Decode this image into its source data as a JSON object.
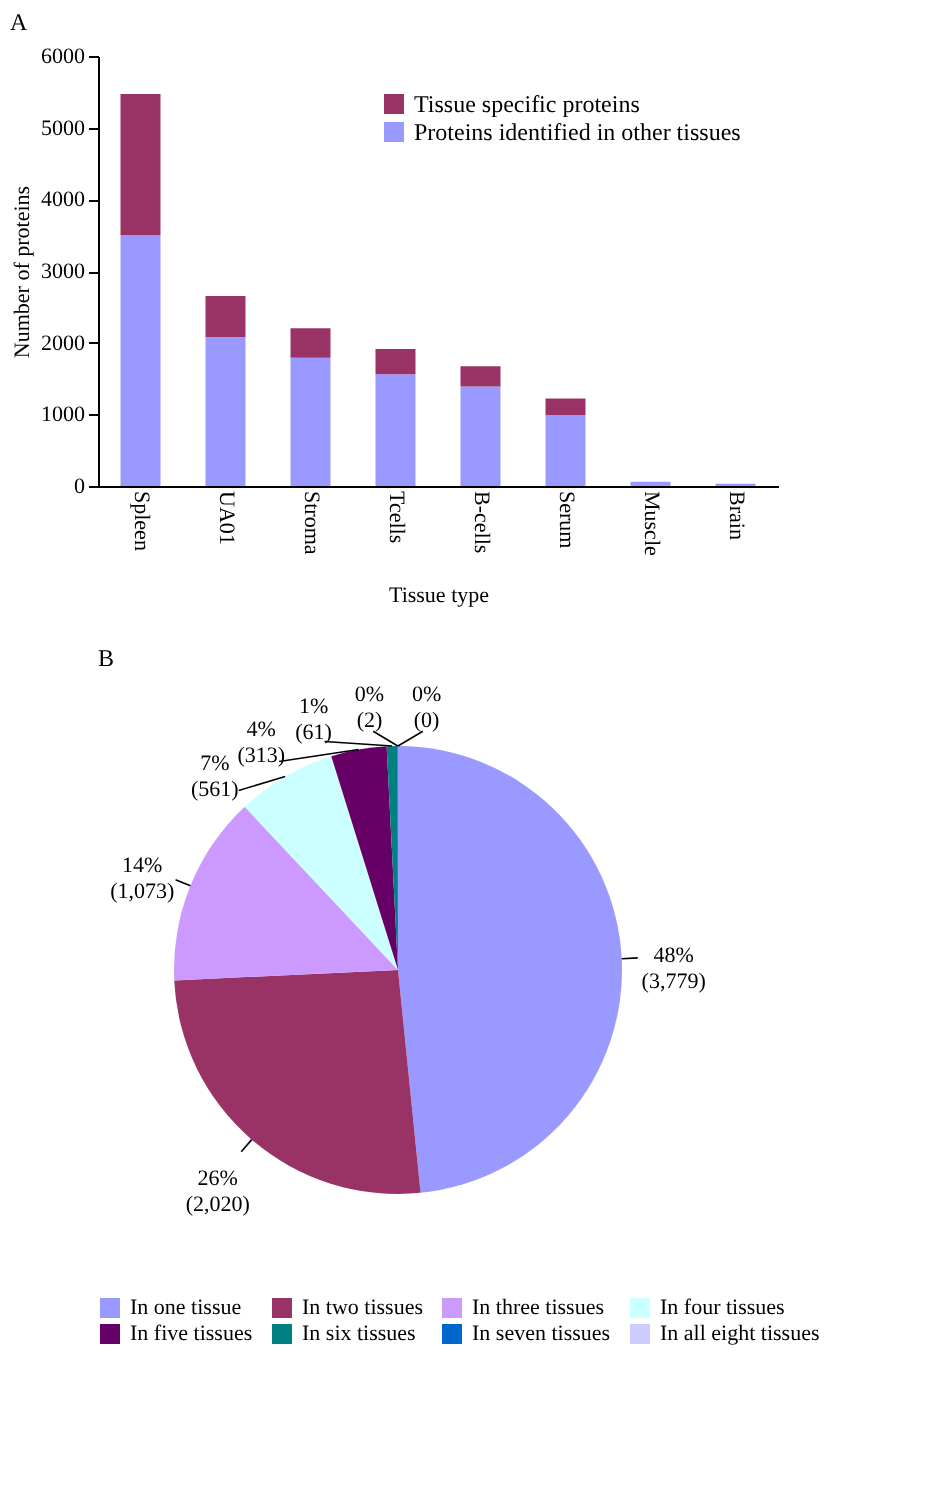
{
  "chart_data": [
    {
      "type": "bar",
      "title": "A",
      "xlabel": "Tissue type",
      "ylabel": "Number of proteins",
      "categories": [
        "Spleen",
        "UA01",
        "Stroma",
        "Tcells",
        "B-cells",
        "Serum",
        "Muscle",
        "Brain"
      ],
      "stacked": true,
      "series": [
        {
          "name": "Proteins identified in other tissues",
          "color": "#9999ff",
          "values": [
            3500,
            2080,
            1790,
            1560,
            1390,
            990,
            60,
            30
          ]
        },
        {
          "name": "Tissue specific proteins",
          "color": "#993366",
          "values": [
            1970,
            570,
            410,
            350,
            280,
            230,
            0,
            0
          ]
        }
      ],
      "ylim": [
        0,
        6000
      ],
      "yticks": [
        0,
        {
          "value": 1000,
          "label": "1000"
        },
        {
          "value": 2000,
          "label": "2000"
        },
        {
          "value": 3000,
          "label": "3000"
        },
        {
          "value": 4000,
          "label": "4000"
        },
        {
          "value": 5000,
          "label": "5000"
        },
        {
          "value": 6000,
          "label": "6000"
        }
      ],
      "grid": false,
      "legend": "top right"
    },
    {
      "type": "pie",
      "title": "B",
      "categories": [
        "In one tissue",
        "In two tissues",
        "In three tissues",
        "In four tissues",
        "In five tissues",
        "In six tissues",
        "In seven tissues",
        "In all eight tissues"
      ],
      "values": [
        3779,
        2020,
        1073,
        561,
        313,
        61,
        2,
        0
      ],
      "colors": [
        "#9999ff",
        "#993366",
        "#cc99ff",
        "#ccffff",
        "#660066",
        "#008080",
        "#0066cc",
        "#ccccff"
      ],
      "value_labels": [
        "48% (3,779)",
        "26% (2,020)",
        "14% (1,073)",
        "7% (561)",
        "4% (313)",
        "1% (61)",
        "0% (2)",
        "0% (0)"
      ],
      "legend": "bottom"
    }
  ]
}
